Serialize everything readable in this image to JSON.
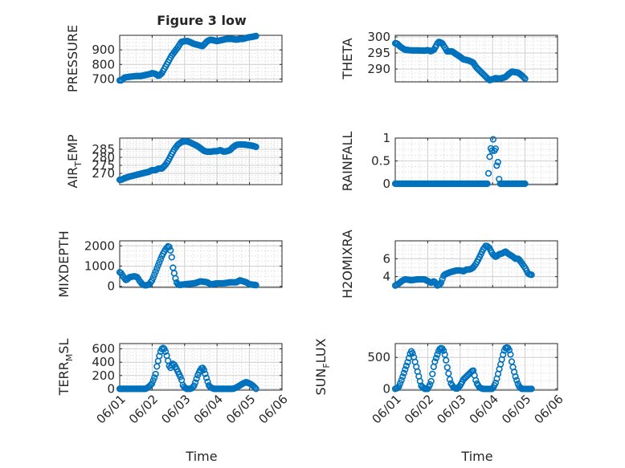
{
  "figure": {
    "title": "Figure 3 low",
    "shared_xlabel": "Time",
    "x_tick_labels": [
      "06/01",
      "06/02",
      "06/03",
      "06/04",
      "06/05",
      "06/06"
    ],
    "marker_color": "#0072BD"
  },
  "chart_data": [
    {
      "type": "scatter",
      "ylabel": "PRESSURE",
      "title": "Figure 3 low",
      "xlim": [
        0,
        5
      ],
      "ylim": [
        680,
        1000
      ],
      "yticks": [
        700,
        800,
        900
      ],
      "x_tick_labels": [
        "06/01",
        "06/02",
        "06/03",
        "06/04",
        "06/05",
        "06/06"
      ],
      "grid": true,
      "marker": "circle",
      "curve_x": [
        0,
        0.05,
        0.15,
        0.3,
        0.5,
        0.65,
        0.75,
        0.85,
        0.95,
        1.0,
        1.1,
        1.2,
        1.3,
        1.45,
        1.6,
        1.7,
        1.8,
        1.9,
        2.0,
        2.1,
        2.2,
        2.3,
        2.4,
        2.55,
        2.7,
        2.8,
        2.9,
        3.0,
        3.1,
        3.2,
        3.3,
        3.45,
        3.6,
        3.7,
        3.8,
        3.95,
        4.1,
        4.2
      ],
      "curve_y": [
        690,
        690,
        710,
        715,
        720,
        720,
        725,
        730,
        735,
        740,
        735,
        720,
        740,
        800,
        860,
        890,
        920,
        955,
        960,
        960,
        950,
        940,
        935,
        925,
        960,
        970,
        965,
        960,
        965,
        970,
        975,
        975,
        970,
        975,
        975,
        985,
        990,
        995
      ]
    },
    {
      "type": "scatter",
      "ylabel": "THETA",
      "xlim": [
        0,
        5
      ],
      "ylim": [
        286,
        300.5
      ],
      "yticks": [
        290,
        295,
        300
      ],
      "x_tick_labels": [
        "06/01",
        "06/02",
        "06/03",
        "06/04",
        "06/05",
        "06/06"
      ],
      "grid": true,
      "marker": "circle",
      "curve_x": [
        0,
        0.05,
        0.15,
        0.3,
        0.5,
        0.7,
        0.9,
        1.0,
        1.1,
        1.2,
        1.3,
        1.35,
        1.45,
        1.6,
        1.75,
        1.85,
        2.0,
        2.1,
        2.2,
        2.3,
        2.4,
        2.5,
        2.6,
        2.7,
        2.8,
        2.9,
        3.0,
        3.1,
        3.2,
        3.3,
        3.4,
        3.5,
        3.6,
        3.7,
        3.8,
        3.9,
        4.0
      ],
      "curve_y": [
        298,
        298,
        297,
        296,
        295.8,
        295.8,
        295.7,
        295.9,
        295.5,
        296.1,
        298,
        298.5,
        298,
        295.5,
        295.5,
        294.8,
        293.8,
        293,
        292.8,
        292.5,
        292,
        290.5,
        289.5,
        288.5,
        287.5,
        286.5,
        286.8,
        287.2,
        287,
        287.2,
        287.5,
        288.5,
        289.2,
        289,
        288.8,
        288,
        287
      ]
    },
    {
      "type": "scatter",
      "ylabel": "AIR_TEMP",
      "xlim": [
        0,
        5
      ],
      "ylim": [
        263,
        292
      ],
      "yticks": [
        270,
        275,
        280,
        285
      ],
      "x_tick_labels": [
        "06/01",
        "06/02",
        "06/03",
        "06/04",
        "06/05",
        "06/06"
      ],
      "grid": true,
      "marker": "circle",
      "curve_x": [
        0,
        0.05,
        0.15,
        0.3,
        0.5,
        0.7,
        0.9,
        1.0,
        1.1,
        1.2,
        1.3,
        1.4,
        1.5,
        1.6,
        1.7,
        1.8,
        1.9,
        2.0,
        2.1,
        2.2,
        2.3,
        2.4,
        2.5,
        2.6,
        2.7,
        2.8,
        2.9,
        3.0,
        3.1,
        3.2,
        3.3,
        3.4,
        3.5,
        3.6,
        3.7,
        3.8,
        3.9,
        4.0,
        4.1,
        4.2
      ],
      "curve_y": [
        266,
        266,
        267,
        268,
        269,
        270,
        271,
        272,
        272,
        273,
        273,
        275,
        278,
        282,
        285.5,
        288,
        289.5,
        290,
        289.8,
        289,
        288,
        287,
        285.5,
        284,
        283.5,
        283.5,
        283.8,
        283.8,
        284.5,
        283.5,
        283.8,
        284.5,
        286.5,
        287.8,
        288,
        288,
        287.8,
        287.5,
        287.2,
        286.5
      ]
    },
    {
      "type": "scatter",
      "ylabel": "RAINFALL",
      "xlim": [
        0,
        5
      ],
      "ylim": [
        -0.02,
        1.0
      ],
      "yticks": [
        0,
        0.5,
        1
      ],
      "x_tick_labels": [
        "06/01",
        "06/02",
        "06/03",
        "06/04",
        "06/05",
        "06/06"
      ],
      "grid": true,
      "marker": "circle",
      "curve_x": [
        0,
        0.5,
        1.0,
        1.5,
        2.0,
        2.5,
        2.85,
        2.9,
        2.93,
        2.96,
        3.0,
        3.02,
        3.05,
        3.08,
        3.1,
        3.12,
        3.15,
        3.18,
        3.22,
        3.3,
        3.5,
        3.8,
        4.0
      ],
      "curve_y": [
        0,
        0,
        0,
        0,
        0,
        0,
        0,
        0.5,
        0.8,
        0.75,
        0.7,
        1.0,
        0.7,
        0.85,
        0.7,
        0.3,
        0.7,
        0.2,
        0,
        0,
        0,
        0,
        0
      ]
    },
    {
      "type": "scatter",
      "ylabel": "MIXDEPTH",
      "xlim": [
        0,
        5
      ],
      "ylim": [
        -50,
        2250
      ],
      "yticks": [
        0,
        1000,
        2000
      ],
      "x_tick_labels": [
        "06/01",
        "06/02",
        "06/03",
        "06/04",
        "06/05",
        "06/06"
      ],
      "grid": true,
      "marker": "circle",
      "curve_x": [
        0,
        0.05,
        0.1,
        0.15,
        0.2,
        0.3,
        0.45,
        0.55,
        0.6,
        0.65,
        0.7,
        0.75,
        0.8,
        0.9,
        1.0,
        1.05,
        1.1,
        1.15,
        1.2,
        1.3,
        1.4,
        1.5,
        1.55,
        1.6,
        1.63,
        1.66,
        1.7,
        1.75,
        1.8,
        1.85,
        1.9,
        2.0,
        2.1,
        2.3,
        2.5,
        2.7,
        2.8,
        2.9,
        3.0,
        3.2,
        3.4,
        3.6,
        3.7,
        3.8,
        3.9,
        4.0,
        4.1,
        4.2
      ],
      "curve_y": [
        700,
        650,
        500,
        400,
        300,
        450,
        500,
        450,
        300,
        200,
        100,
        60,
        50,
        80,
        300,
        500,
        700,
        900,
        1100,
        1500,
        1800,
        2000,
        1900,
        1500,
        1000,
        800,
        500,
        200,
        100,
        60,
        80,
        100,
        120,
        150,
        250,
        200,
        100,
        120,
        150,
        150,
        200,
        200,
        300,
        250,
        200,
        100,
        80,
        60
      ]
    },
    {
      "type": "scatter",
      "ylabel": "H2OMIXRA",
      "xlim": [
        0,
        5
      ],
      "ylim": [
        2.8,
        8.0
      ],
      "yticks": [
        4,
        6
      ],
      "x_tick_labels": [
        "06/01",
        "06/02",
        "06/03",
        "06/04",
        "06/05",
        "06/06"
      ],
      "grid": true,
      "marker": "circle",
      "curve_x": [
        0,
        0.1,
        0.2,
        0.3,
        0.5,
        0.7,
        0.9,
        1.0,
        1.1,
        1.2,
        1.3,
        1.4,
        1.5,
        1.7,
        1.9,
        2.0,
        2.1,
        2.2,
        2.3,
        2.4,
        2.5,
        2.6,
        2.7,
        2.8,
        2.9,
        3.0,
        3.1,
        3.2,
        3.3,
        3.4,
        3.5,
        3.6,
        3.7,
        3.8,
        3.9,
        4.0,
        4.1,
        4.2
      ],
      "curve_y": [
        3.0,
        3.2,
        3.5,
        3.7,
        3.6,
        3.7,
        3.7,
        3.5,
        3.3,
        3.5,
        3.0,
        3.2,
        4.2,
        4.5,
        4.7,
        4.7,
        4.6,
        4.8,
        4.8,
        5.0,
        5.5,
        6.2,
        7.0,
        7.5,
        7.2,
        6.5,
        6.2,
        6.5,
        6.6,
        6.8,
        6.5,
        6.3,
        6.0,
        6.0,
        5.5,
        5.0,
        4.3,
        4.2
      ]
    },
    {
      "type": "scatter",
      "ylabel": "TERR_MSL",
      "xlim": [
        0,
        5
      ],
      "ylim": [
        -20,
        680
      ],
      "yticks": [
        0,
        200,
        400,
        600
      ],
      "x_tick_labels": [
        "06/01",
        "06/02",
        "06/03",
        "06/04",
        "06/05",
        "06/06"
      ],
      "grid": true,
      "marker": "circle",
      "curve_x": [
        0,
        0.2,
        0.4,
        0.6,
        0.8,
        0.9,
        1.0,
        1.05,
        1.1,
        1.15,
        1.2,
        1.25,
        1.3,
        1.35,
        1.4,
        1.45,
        1.5,
        1.55,
        1.6,
        1.65,
        1.7,
        1.75,
        1.8,
        1.85,
        1.9,
        1.95,
        2.0,
        2.05,
        2.1,
        2.2,
        2.3,
        2.4,
        2.45,
        2.5,
        2.55,
        2.6,
        2.65,
        2.7,
        2.75,
        2.8,
        2.9,
        3.0,
        3.1,
        3.2,
        3.3,
        3.4,
        3.5,
        3.6,
        3.7,
        3.8,
        3.9,
        4.0,
        4.1,
        4.2
      ],
      "curve_y": [
        0,
        0,
        0,
        0,
        0,
        30,
        80,
        150,
        200,
        350,
        450,
        550,
        600,
        620,
        580,
        500,
        400,
        300,
        350,
        380,
        350,
        300,
        250,
        200,
        150,
        50,
        20,
        0,
        0,
        0,
        50,
        200,
        250,
        300,
        320,
        280,
        200,
        120,
        50,
        20,
        0,
        0,
        0,
        0,
        0,
        0,
        0,
        20,
        50,
        80,
        100,
        80,
        50,
        0
      ]
    },
    {
      "type": "scatter",
      "ylabel": "SUN_FLUX",
      "xlim": [
        0,
        5
      ],
      "ylim": [
        -20,
        720
      ],
      "yticks": [
        0,
        500
      ],
      "x_tick_labels": [
        "06/01",
        "06/02",
        "06/03",
        "06/04",
        "06/05",
        "06/06"
      ],
      "grid": true,
      "marker": "circle",
      "curve_x": [
        0,
        0.1,
        0.2,
        0.3,
        0.4,
        0.45,
        0.5,
        0.55,
        0.6,
        0.7,
        0.8,
        0.9,
        1.0,
        1.1,
        1.2,
        1.3,
        1.35,
        1.4,
        1.45,
        1.5,
        1.55,
        1.6,
        1.7,
        1.8,
        1.9,
        2.0,
        2.1,
        2.2,
        2.3,
        2.4,
        2.5,
        2.6,
        2.7,
        2.8,
        2.9,
        3.0,
        3.1,
        3.2,
        3.3,
        3.35,
        3.4,
        3.45,
        3.5,
        3.55,
        3.6,
        3.7,
        3.8,
        3.9,
        4.0,
        4.1,
        4.2
      ],
      "curve_y": [
        0,
        20,
        150,
        300,
        450,
        550,
        600,
        550,
        450,
        250,
        50,
        0,
        0,
        100,
        400,
        550,
        620,
        650,
        640,
        600,
        500,
        350,
        100,
        20,
        0,
        50,
        150,
        200,
        250,
        300,
        100,
        20,
        0,
        0,
        0,
        0,
        100,
        300,
        500,
        600,
        650,
        660,
        640,
        550,
        400,
        200,
        50,
        0,
        0,
        0,
        0
      ]
    }
  ]
}
